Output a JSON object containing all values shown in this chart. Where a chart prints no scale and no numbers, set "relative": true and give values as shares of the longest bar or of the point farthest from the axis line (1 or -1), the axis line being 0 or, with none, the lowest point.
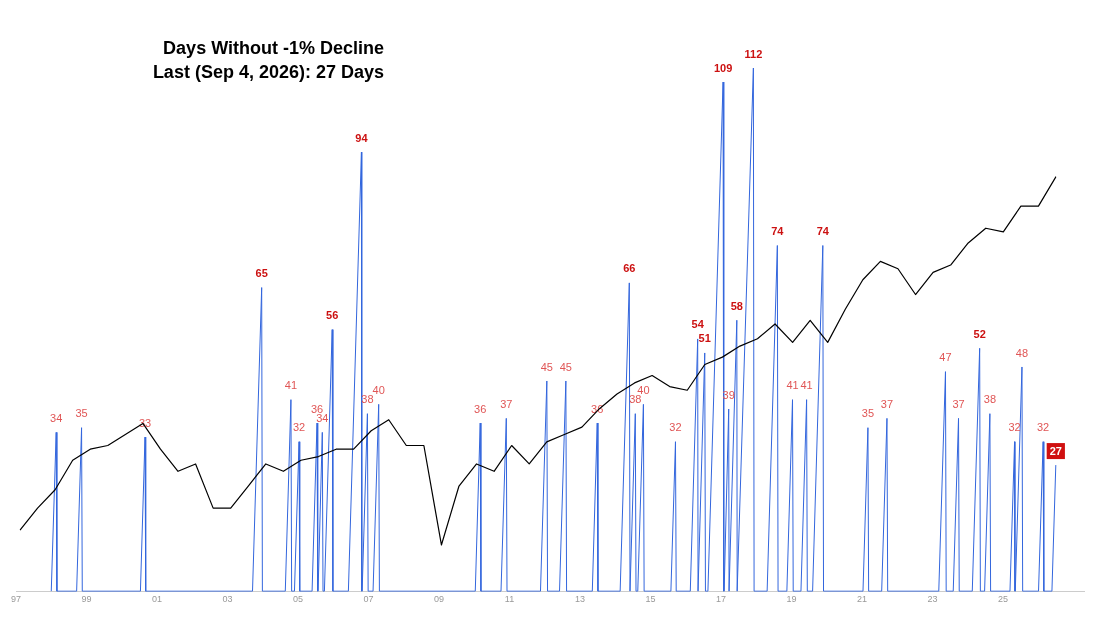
{
  "chart_data": [
    {
      "type": "line",
      "title": "Days Without -1% Decline",
      "subtitle": "Last (Sep 4, 2026): 27 Days",
      "xlim": [
        1997,
        2027.3
      ],
      "xticks": [
        {
          "value": 1997,
          "label": "97"
        },
        {
          "value": 1999,
          "label": "99"
        },
        {
          "value": 2001,
          "label": "01"
        },
        {
          "value": 2003,
          "label": "03"
        },
        {
          "value": 2005,
          "label": "05"
        },
        {
          "value": 2007,
          "label": "07"
        },
        {
          "value": 2009,
          "label": "09"
        },
        {
          "value": 2011,
          "label": "11"
        },
        {
          "value": 2013,
          "label": "13"
        },
        {
          "value": 2015,
          "label": "15"
        },
        {
          "value": 2017,
          "label": "17"
        },
        {
          "value": 2019,
          "label": "19"
        },
        {
          "value": 2021,
          "label": "21"
        },
        {
          "value": 2023,
          "label": "23"
        },
        {
          "value": 2025,
          "label": "25"
        }
      ],
      "tick_labels": "x",
      "legend": false,
      "grid": false,
      "marker": "none",
      "series": [
        {
          "color": "#3366dd",
          "x": [
            1998.0,
            1998.14,
            1998.16,
            1998.72,
            1998.86,
            1998.88,
            2000.53,
            2000.66,
            2000.68,
            2003.71,
            2003.97,
            2003.99,
            2004.64,
            2004.8,
            2004.82,
            2004.9,
            2005.03,
            2005.05,
            2005.4,
            2005.54,
            2005.56,
            2005.57,
            2005.69,
            2005.71,
            2005.75,
            2005.97,
            2005.99,
            2006.43,
            2006.8,
            2006.81,
            2006.82,
            2006.97,
            2006.99,
            2007.13,
            2007.29,
            2007.31,
            2010.03,
            2010.17,
            2010.19,
            2010.76,
            2010.91,
            2010.93,
            2011.88,
            2012.06,
            2012.08,
            2012.42,
            2012.6,
            2012.62,
            2013.35,
            2013.49,
            2013.51,
            2014.14,
            2014.4,
            2014.42,
            2014.43,
            2014.57,
            2014.59,
            2014.64,
            2014.8,
            2014.82,
            2015.58,
            2015.71,
            2015.73,
            2016.13,
            2016.34,
            2016.35,
            2016.36,
            2016.54,
            2016.56,
            2016.63,
            2017.06,
            2017.08,
            2017.09,
            2017.22,
            2017.23,
            2017.24,
            2017.45,
            2017.46,
            2017.48,
            2017.92,
            2017.94,
            2018.31,
            2018.6,
            2018.62,
            2018.87,
            2019.03,
            2019.05,
            2019.27,
            2019.43,
            2019.45,
            2019.6,
            2019.89,
            2019.91,
            2021.03,
            2021.17,
            2021.19,
            2021.56,
            2021.71,
            2021.73,
            2023.18,
            2023.37,
            2023.39,
            2023.59,
            2023.74,
            2023.76,
            2024.13,
            2024.34,
            2024.36,
            2024.48,
            2024.63,
            2024.65,
            2025.2,
            2025.33,
            2025.34,
            2025.35,
            2025.54,
            2025.56,
            2026.01,
            2026.14,
            2026.16,
            2026.39,
            2026.5
          ],
          "values": [
            0,
            34,
            0,
            0,
            35,
            0,
            0,
            33,
            0,
            0,
            65,
            0,
            0,
            41,
            0,
            0,
            32,
            0,
            0,
            36,
            0,
            0,
            34,
            0,
            0,
            56,
            0,
            0,
            94,
            0,
            0,
            38,
            0,
            0,
            40,
            0,
            0,
            36,
            0,
            0,
            37,
            0,
            0,
            45,
            0,
            0,
            45,
            0,
            0,
            36,
            0,
            0,
            66,
            0,
            0,
            38,
            0,
            0,
            40,
            0,
            0,
            32,
            0,
            0,
            54,
            0,
            0,
            51,
            0,
            0,
            109,
            0,
            0,
            39,
            0,
            0,
            58,
            0,
            0,
            112,
            0,
            0,
            74,
            0,
            0,
            41,
            0,
            0,
            41,
            0,
            0,
            74,
            0,
            0,
            35,
            0,
            0,
            37,
            0,
            0,
            47,
            0,
            0,
            37,
            0,
            0,
            52,
            0,
            0,
            38,
            0,
            0,
            32,
            0,
            0,
            48,
            0,
            0,
            32,
            0,
            0,
            27
          ],
          "value_labels": [
            null,
            "34",
            null,
            null,
            "35",
            null,
            null,
            "33",
            null,
            null,
            "65",
            null,
            null,
            "41",
            null,
            null,
            "32",
            null,
            null,
            "36",
            null,
            null,
            "34",
            null,
            null,
            "56",
            null,
            null,
            "94",
            null,
            null,
            "38",
            null,
            null,
            "40",
            null,
            null,
            "36",
            null,
            null,
            "37",
            null,
            null,
            "45",
            null,
            null,
            "45",
            null,
            null,
            "36",
            null,
            null,
            "66",
            null,
            null,
            "38",
            null,
            null,
            "40",
            null,
            null,
            "32",
            null,
            null,
            "54",
            null,
            null,
            "51",
            null,
            null,
            "109",
            null,
            null,
            "39",
            null,
            null,
            "58",
            null,
            null,
            "112",
            null,
            null,
            "74",
            null,
            null,
            "41",
            null,
            null,
            "41",
            null,
            null,
            "74",
            null,
            null,
            "35",
            null,
            null,
            "37",
            null,
            null,
            "47",
            null,
            null,
            "37",
            null,
            null,
            "52",
            null,
            null,
            "38",
            null,
            null,
            "32",
            null,
            null,
            "48",
            null,
            null,
            "32",
            null,
            null,
            "27"
          ]
        }
      ]
    },
    {
      "type": "line",
      "relative": true,
      "categories": [
        null,
        null,
        null,
        null,
        null,
        null,
        null,
        null,
        null,
        null,
        null,
        null,
        null,
        null,
        null,
        null,
        null,
        null,
        null,
        null,
        null,
        null,
        null,
        null,
        null,
        null,
        null,
        null,
        null,
        null,
        null,
        null,
        null,
        null,
        null,
        null,
        null,
        null,
        null,
        null,
        null,
        null,
        null,
        null,
        null,
        null,
        null,
        null,
        null,
        null,
        null,
        null,
        null,
        null,
        null,
        null,
        null,
        null,
        null,
        null
      ],
      "tick_labels": false,
      "legend": false,
      "grid": false,
      "marker": "none",
      "series": [
        {
          "color": "#000000",
          "values": [
            0.04,
            0.1,
            0.15,
            0.23,
            0.26,
            0.27,
            0.3,
            0.33,
            0.26,
            0.2,
            0.22,
            0.1,
            0.1,
            0.16,
            0.22,
            0.2,
            0.23,
            0.24,
            0.26,
            0.26,
            0.31,
            0.34,
            0.27,
            0.27,
            0,
            0.16,
            0.22,
            0.2,
            0.27,
            0.22,
            0.28,
            0.3,
            0.32,
            0.37,
            0.41,
            0.44,
            0.46,
            0.43,
            0.42,
            0.49,
            0.51,
            0.54,
            0.56,
            0.6,
            0.55,
            0.61,
            0.55,
            0.64,
            0.72,
            0.77,
            0.75,
            0.68,
            0.74,
            0.76,
            0.82,
            0.86,
            0.85,
            0.92,
            0.92,
            1
          ]
        }
      ]
    }
  ]
}
